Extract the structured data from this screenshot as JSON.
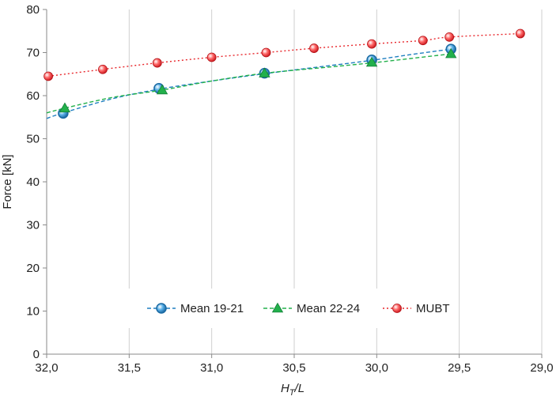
{
  "chart_data": {
    "type": "scatter",
    "xlabel": "H_T/L",
    "xlabel_main": "H",
    "xlabel_sub": "T",
    "xlabel_tail": "/L",
    "ylabel": "Force [kN]",
    "xlim": [
      32.0,
      29.0
    ],
    "x_reversed": true,
    "ylim": [
      0,
      80
    ],
    "grid": "vertical",
    "legend_position": "bottom-center",
    "x_ticks": [
      32.0,
      31.5,
      31.0,
      30.5,
      30.0,
      29.5,
      29.0
    ],
    "x_tick_labels": [
      "32,0",
      "31,5",
      "31,0",
      "30,5",
      "30,0",
      "29,5",
      "29,0"
    ],
    "y_ticks": [
      0,
      10,
      20,
      30,
      40,
      50,
      60,
      70,
      80
    ],
    "y_tick_labels": [
      "0",
      "10",
      "20",
      "30",
      "40",
      "50",
      "60",
      "70",
      "80"
    ],
    "series": [
      {
        "name": "Mean 19-21",
        "marker": "circle",
        "color": "#1f7fc0",
        "line_style": "dashed",
        "x": [
          31.9,
          31.32,
          30.68,
          30.03,
          29.55
        ],
        "y": [
          55.9,
          61.7,
          65.2,
          68.3,
          70.8
        ],
        "trend": {
          "x": [
            32.0,
            31.9,
            31.6,
            31.32,
            31.0,
            30.68,
            30.3,
            30.03,
            29.8,
            29.55
          ],
          "y": [
            54.7,
            56.0,
            59.3,
            61.5,
            63.4,
            65.1,
            66.9,
            68.2,
            69.5,
            70.8
          ]
        }
      },
      {
        "name": "Mean 22-24",
        "marker": "triangle",
        "color": "#22b04b",
        "line_style": "dashed",
        "x": [
          31.89,
          31.3,
          30.68,
          30.03,
          29.55
        ],
        "y": [
          57.1,
          61.3,
          65.2,
          67.7,
          69.7
        ],
        "trend": {
          "x": [
            32.0,
            31.89,
            31.6,
            31.3,
            31.0,
            30.68,
            30.3,
            30.03,
            29.8,
            29.55
          ],
          "y": [
            56.0,
            57.1,
            59.6,
            61.3,
            63.4,
            65.2,
            66.6,
            67.6,
            68.6,
            69.7
          ]
        }
      },
      {
        "name": "MUBT",
        "marker": "circle",
        "color": "#e8252a",
        "line_style": "dotted",
        "x": [
          31.99,
          31.66,
          31.33,
          31.0,
          30.67,
          30.38,
          30.03,
          29.72,
          29.56,
          29.13
        ],
        "y": [
          64.5,
          66.1,
          67.6,
          68.9,
          70.0,
          71.0,
          72.0,
          72.8,
          73.6,
          74.4
        ]
      }
    ]
  }
}
